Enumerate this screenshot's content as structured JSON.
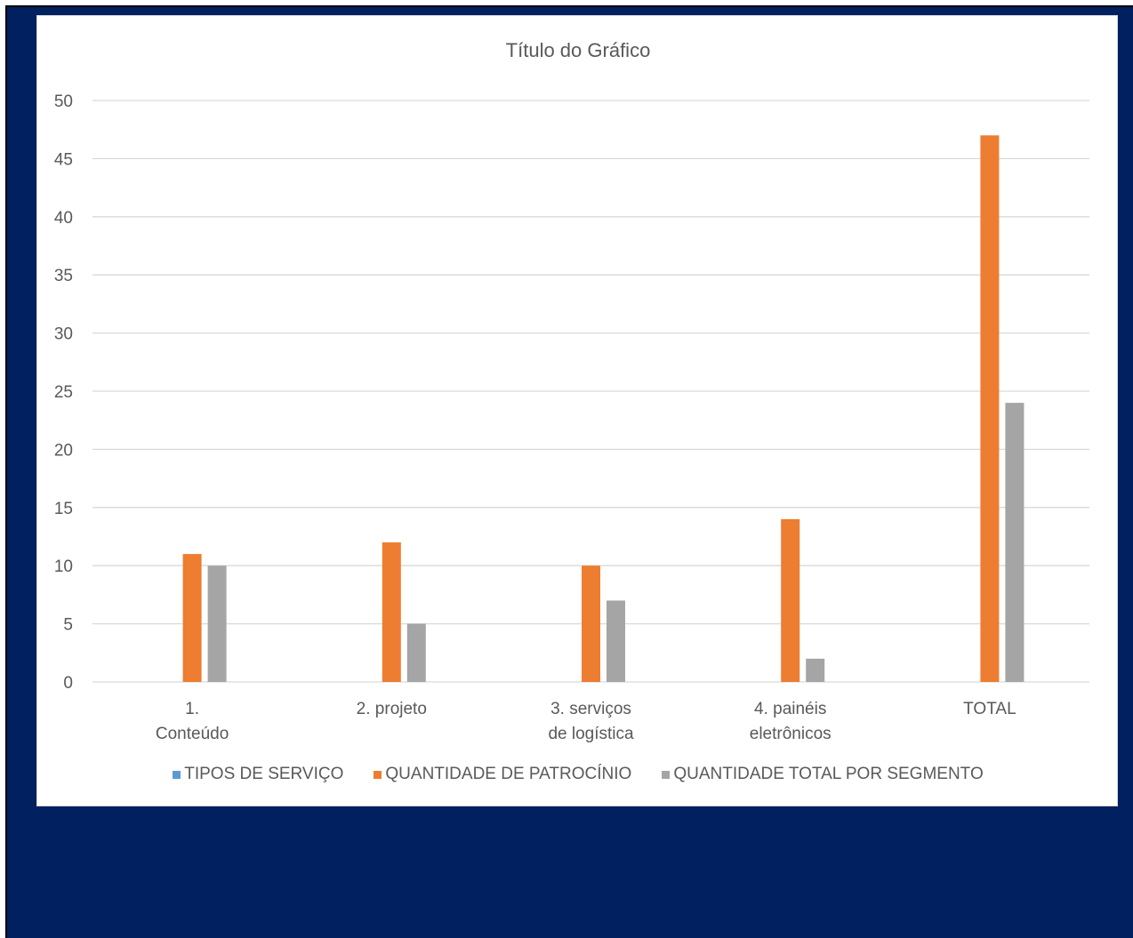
{
  "chart_data": {
    "type": "bar",
    "title": "Título do Gráfico",
    "categories": [
      [
        "1.",
        "Conteúdo"
      ],
      [
        "2.  projeto"
      ],
      [
        "3.  serviços",
        "de logística"
      ],
      [
        "4.  painéis",
        "eletrônicos"
      ],
      [
        "TOTAL"
      ]
    ],
    "series": [
      {
        "name": "TIPOS DE SERVIÇO",
        "color": "#5b9bd5",
        "values": [
          0,
          0,
          0,
          0,
          0
        ]
      },
      {
        "name": "QUANTIDADE DE PATROCÍNIO",
        "color": "#ed7d31",
        "values": [
          11,
          12,
          10,
          14,
          47
        ]
      },
      {
        "name": "QUANTIDADE TOTAL POR SEGMENTO",
        "color": "#a5a5a5",
        "values": [
          10,
          5,
          7,
          2,
          24
        ]
      }
    ],
    "ylim": [
      0,
      50
    ],
    "yticks": [
      0,
      5,
      10,
      15,
      20,
      25,
      30,
      35,
      40,
      45,
      50
    ],
    "grid": true,
    "legend_position": "bottom"
  }
}
